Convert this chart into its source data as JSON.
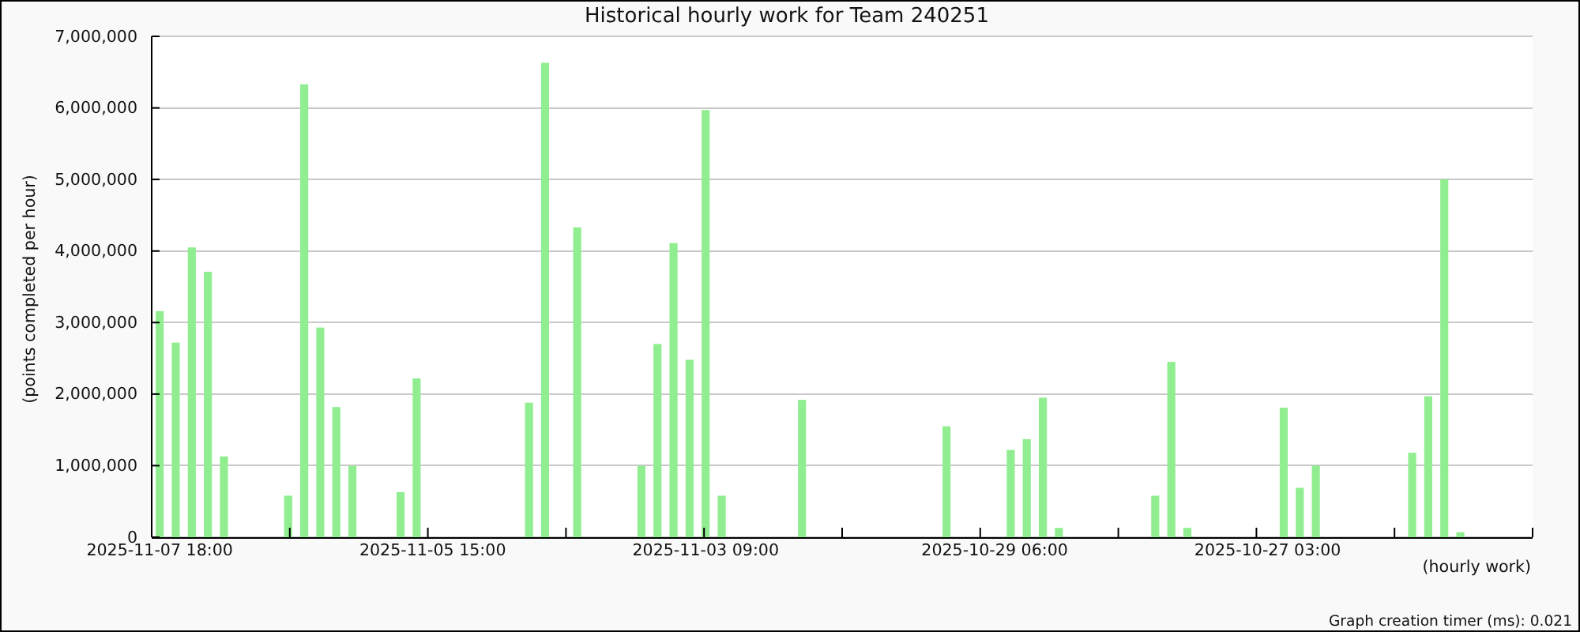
{
  "chart_data": {
    "type": "bar",
    "title": "Historical hourly work for Team 240251",
    "xlabel": "(hourly work)",
    "ylabel": "(points completed per hour)",
    "annotations": [
      "Graph creation timer (ms): 0.021"
    ],
    "categories": [
      "2025-11-07 18:00",
      null,
      null,
      null,
      null,
      null,
      null,
      null,
      null,
      null,
      null,
      null,
      null,
      null,
      null,
      null,
      null,
      "2025-11-05 15:00",
      null,
      null,
      null,
      null,
      null,
      null,
      null,
      null,
      null,
      null,
      null,
      null,
      null,
      null,
      null,
      null,
      "2025-11-03 09:00",
      null,
      null,
      null,
      null,
      null,
      null,
      null,
      null,
      null,
      null,
      null,
      null,
      null,
      null,
      null,
      null,
      null,
      "2025-10-29 06:00",
      null,
      null,
      null,
      null,
      null,
      null,
      null,
      null,
      null,
      null,
      null,
      null,
      null,
      null,
      null,
      null,
      "2025-10-27 03:00",
      null,
      null,
      null,
      null,
      null,
      null,
      null,
      null,
      null,
      null,
      null,
      null,
      null,
      null,
      null,
      null
    ],
    "values": [
      3160000,
      2720000,
      4050000,
      3710000,
      1130000,
      0,
      0,
      0,
      580000,
      6330000,
      2930000,
      1820000,
      1000000,
      0,
      0,
      630000,
      2220000,
      0,
      0,
      0,
      0,
      0,
      0,
      1880000,
      6630000,
      0,
      4330000,
      0,
      0,
      0,
      1000000,
      2700000,
      4110000,
      2480000,
      5970000,
      580000,
      0,
      0,
      0,
      0,
      1920000,
      0,
      0,
      0,
      0,
      0,
      0,
      0,
      0,
      1550000,
      0,
      0,
      0,
      1220000,
      1370000,
      1950000,
      130000,
      0,
      0,
      0,
      0,
      0,
      580000,
      2450000,
      130000,
      0,
      0,
      0,
      0,
      0,
      1810000,
      690000,
      1000000,
      0,
      0,
      0,
      0,
      0,
      1180000,
      1970000,
      5000000,
      70000,
      0,
      0,
      0,
      0
    ],
    "color": "#90ee90",
    "ylim": [
      0,
      7000000
    ],
    "yticks": [
      0,
      {
        "value": 1000000,
        "label": "1,000,000"
      },
      {
        "value": 2000000,
        "label": "2,000,000"
      },
      {
        "value": 3000000,
        "label": "3,000,000"
      },
      {
        "value": 4000000,
        "label": "4,000,000"
      },
      {
        "value": 5000000,
        "label": "5,000,000"
      },
      {
        "value": 6000000,
        "label": "6,000,000"
      },
      {
        "value": 7000000,
        "label": "7,000,000"
      }
    ],
    "grid": "y"
  }
}
